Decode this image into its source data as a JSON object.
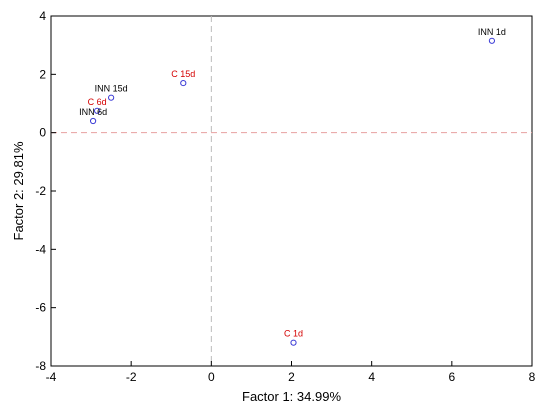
{
  "chart_data": {
    "type": "scatter",
    "title": "",
    "xlabel": "Factor 1: 34.99%",
    "ylabel": "Factor 2: 29.81%",
    "xlim": [
      -4,
      8
    ],
    "ylim": [
      -8,
      4
    ],
    "xticks": [
      "-4",
      "-2",
      "0",
      "2",
      "4",
      "6",
      "8"
    ],
    "yticks": [
      "4",
      "2",
      "0",
      "-2",
      "-4",
      "-6",
      "-8"
    ],
    "grid": false,
    "reference_lines": {
      "x": 0,
      "y": 0
    },
    "marker_color": "#3b3bd6",
    "points": [
      {
        "label": "INN 1d",
        "x": 7.0,
        "y": 3.15,
        "color": "#000000"
      },
      {
        "label": "C 15d",
        "x": -0.7,
        "y": 1.7,
        "color": "#d40000"
      },
      {
        "label": "INN 15d",
        "x": -2.5,
        "y": 1.2,
        "color": "#000000"
      },
      {
        "label": "C 6d",
        "x": -2.85,
        "y": 0.75,
        "color": "#d40000"
      },
      {
        "label": "INN 6d",
        "x": -2.95,
        "y": 0.4,
        "color": "#000000"
      },
      {
        "label": "C 1d",
        "x": 2.05,
        "y": -7.2,
        "color": "#d40000"
      }
    ]
  }
}
